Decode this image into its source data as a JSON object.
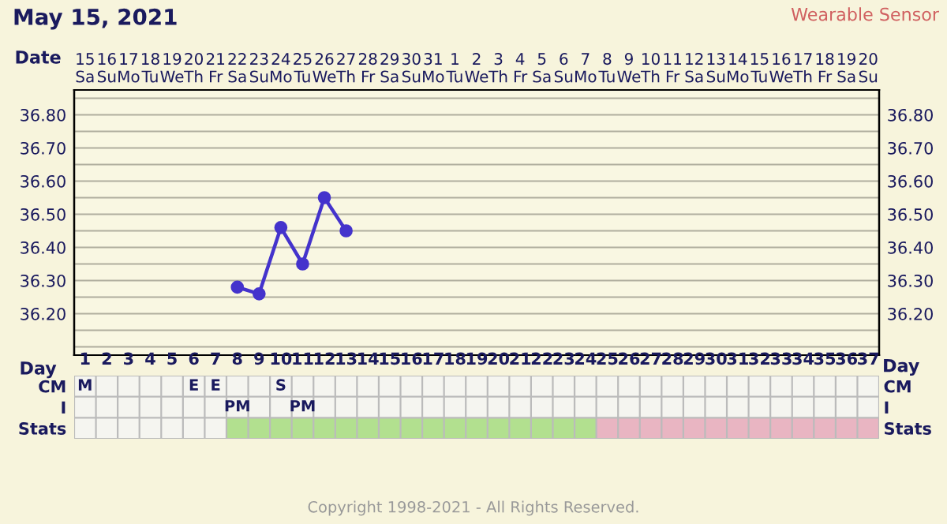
{
  "chart_data": [
    {
      "type": "line",
      "title": "May 15, 2021",
      "subtitle": "Wearable Sensor",
      "x2label": "Date",
      "tick_labels": "y",
      "categories": [
        "1",
        "2",
        "3",
        "4",
        "5",
        "6",
        "7",
        "8",
        "9",
        "10",
        "11",
        "12",
        "13",
        "14",
        "15",
        "16",
        "17",
        "18",
        "19",
        "20",
        "21",
        "22",
        "23",
        "24",
        "25",
        "26",
        "27",
        "28",
        "29",
        "30",
        "31",
        "32",
        "33",
        "34",
        "35",
        "36",
        "37"
      ],
      "series": [
        {
          "color": "#4433cc",
          "values": [
            null,
            null,
            null,
            null,
            null,
            null,
            null,
            36.28,
            36.26,
            36.46,
            36.35,
            36.55,
            36.45,
            null,
            null,
            null,
            null,
            null,
            null,
            null,
            null,
            null,
            null,
            null,
            null,
            null,
            null,
            null,
            null,
            null,
            null,
            null,
            null,
            null,
            null,
            null,
            null
          ]
        }
      ],
      "ylim": [
        36.075,
        36.875
      ],
      "yticks": [
        {
          "value": 36.1,
          "label": null
        },
        {
          "value": 36.15,
          "label": null
        },
        {
          "value": 36.2,
          "label": "36.20"
        },
        {
          "value": 36.25,
          "label": null
        },
        {
          "value": 36.3,
          "label": "36.30"
        },
        {
          "value": 36.35,
          "label": null
        },
        {
          "value": 36.4,
          "label": "36.40"
        },
        {
          "value": 36.45,
          "label": null
        },
        {
          "value": 36.5,
          "label": "36.50"
        },
        {
          "value": 36.55,
          "label": null
        },
        {
          "value": 36.6,
          "label": "36.60"
        },
        {
          "value": 36.65,
          "label": null
        },
        {
          "value": 36.7,
          "label": "36.70"
        },
        {
          "value": 36.75,
          "label": null
        },
        {
          "value": 36.8,
          "label": "36.80"
        },
        {
          "value": 36.85,
          "label": null
        }
      ],
      "y2lim": [
        36.075,
        36.875
      ],
      "y2ticks": [
        {
          "value": 36.1,
          "label": null
        },
        {
          "value": 36.15,
          "label": null
        },
        {
          "value": 36.2,
          "label": "36.20"
        },
        {
          "value": 36.25,
          "label": null
        },
        {
          "value": 36.3,
          "label": "36.30"
        },
        {
          "value": 36.35,
          "label": null
        },
        {
          "value": 36.4,
          "label": "36.40"
        },
        {
          "value": 36.45,
          "label": null
        },
        {
          "value": 36.5,
          "label": "36.50"
        },
        {
          "value": 36.55,
          "label": null
        },
        {
          "value": 36.6,
          "label": "36.60"
        },
        {
          "value": 36.65,
          "label": null
        },
        {
          "value": 36.7,
          "label": "36.70"
        },
        {
          "value": 36.75,
          "label": null
        },
        {
          "value": 36.8,
          "label": "36.80"
        },
        {
          "value": 36.85,
          "label": null
        }
      ],
      "x2lim": [
        "2021-05-14T12:00",
        "2021-06-20T12:00"
      ],
      "x2ticks": [
        {
          "value": "2021-05-15",
          "label": "15\nSa"
        },
        {
          "value": "2021-05-16",
          "label": "16\nSu"
        },
        {
          "value": "2021-05-17",
          "label": "17\nMo"
        },
        {
          "value": "2021-05-18",
          "label": "18\nTu"
        },
        {
          "value": "2021-05-19",
          "label": "19\nWe"
        },
        {
          "value": "2021-05-20",
          "label": "20\nTh"
        },
        {
          "value": "2021-05-21",
          "label": "21\nFr"
        },
        {
          "value": "2021-05-22",
          "label": "22\nSa"
        },
        {
          "value": "2021-05-23",
          "label": "23\nSu"
        },
        {
          "value": "2021-05-24",
          "label": "24\nMo"
        },
        {
          "value": "2021-05-25",
          "label": "25\nTu"
        },
        {
          "value": "2021-05-26",
          "label": "26\nWe"
        },
        {
          "value": "2021-05-27",
          "label": "27\nTh"
        },
        {
          "value": "2021-05-28",
          "label": "28\nFr"
        },
        {
          "value": "2021-05-29",
          "label": "29\nSa"
        },
        {
          "value": "2021-05-30",
          "label": "30\nSu"
        },
        {
          "value": "2021-05-31",
          "label": "31\nMo"
        },
        {
          "value": "2021-06-01",
          "label": "1\nTu"
        },
        {
          "value": "2021-06-02",
          "label": "2\nWe"
        },
        {
          "value": "2021-06-03",
          "label": "3\nTh"
        },
        {
          "value": "2021-06-04",
          "label": "4\nFr"
        },
        {
          "value": "2021-06-05",
          "label": "5\nSa"
        },
        {
          "value": "2021-06-06",
          "label": "6\nSu"
        },
        {
          "value": "2021-06-07",
          "label": "7\nMo"
        },
        {
          "value": "2021-06-08",
          "label": "8\nTu"
        },
        {
          "value": "2021-06-09",
          "label": "9\nWe"
        },
        {
          "value": "2021-06-10",
          "label": "10\nTh"
        },
        {
          "value": "2021-06-11",
          "label": "11\nFr"
        },
        {
          "value": "2021-06-12",
          "label": "12\nSa"
        },
        {
          "value": "2021-06-13",
          "label": "13\nSu"
        },
        {
          "value": "2021-06-14",
          "label": "14\nMo"
        },
        {
          "value": "2021-06-15",
          "label": "15\nTu"
        },
        {
          "value": "2021-06-16",
          "label": "16\nWe"
        },
        {
          "value": "2021-06-17",
          "label": "17\nTh"
        },
        {
          "value": "2021-06-18",
          "label": "18\nFr"
        },
        {
          "value": "2021-06-19",
          "label": "19\nSa"
        },
        {
          "value": "2021-06-20",
          "label": "20\nSu"
        }
      ],
      "grid": true,
      "marker": "circle",
      "line_style": "solid",
      "legend": false,
      "annotations": [
        "Copyright 1998-2021 - All Rights Reserved."
      ]
    },
    {
      "type": "heatmap",
      "xlabel": "Day",
      "annotations": [
        "Day"
      ],
      "bands": [
        {
          "axis": "x",
          "from": "8",
          "to": "24",
          "color": "#b2e08f"
        },
        {
          "axis": "x",
          "from": "25",
          "to": "37",
          "color": "#e9b5c2"
        }
      ],
      "categories": [
        "1",
        "2",
        "3",
        "4",
        "5",
        "6",
        "7",
        "8",
        "9",
        "10",
        "11",
        "12",
        "13",
        "14",
        "15",
        "16",
        "17",
        "18",
        "19",
        "20",
        "21",
        "22",
        "23",
        "24",
        "25",
        "26",
        "27",
        "28",
        "29",
        "30",
        "31",
        "32",
        "33",
        "34",
        "35",
        "36",
        "37"
      ],
      "y_categories": [
        "CM",
        "I",
        "Stats"
      ],
      "y2_categories": [
        "CM",
        "I",
        "Stats"
      ],
      "cells": [
        [
          null,
          null,
          null,
          null,
          null,
          null,
          null,
          null,
          null,
          null,
          null,
          null,
          null,
          null,
          null,
          null,
          null,
          null,
          null,
          null,
          null,
          null,
          null,
          null,
          null,
          null,
          null,
          null,
          null,
          null,
          null,
          null,
          null,
          null,
          null,
          null,
          null
        ],
        [
          null,
          null,
          null,
          null,
          null,
          null,
          null,
          null,
          null,
          null,
          null,
          null,
          null,
          null,
          null,
          null,
          null,
          null,
          null,
          null,
          null,
          null,
          null,
          null,
          null,
          null,
          null,
          null,
          null,
          null,
          null,
          null,
          null,
          null,
          null,
          null,
          null
        ],
        [
          null,
          null,
          null,
          null,
          null,
          null,
          null,
          null,
          null,
          null,
          null,
          null,
          null,
          null,
          null,
          null,
          null,
          null,
          null,
          null,
          null,
          null,
          null,
          null,
          null,
          null,
          null,
          null,
          null,
          null,
          null,
          null,
          null,
          null,
          null,
          null,
          null
        ]
      ],
      "cell_labels": [
        [
          "M",
          null,
          null,
          null,
          null,
          "E",
          "E",
          null,
          null,
          "S",
          null,
          null,
          null,
          null,
          null,
          null,
          null,
          null,
          null,
          null,
          null,
          null,
          null,
          null,
          null,
          null,
          null,
          null,
          null,
          null,
          null,
          null,
          null,
          null,
          null,
          null,
          null
        ],
        [
          null,
          null,
          null,
          null,
          null,
          null,
          null,
          "PM",
          null,
          null,
          "PM",
          null,
          null,
          null,
          null,
          null,
          null,
          null,
          null,
          null,
          null,
          null,
          null,
          null,
          null,
          null,
          null,
          null,
          null,
          null,
          null,
          null,
          null,
          null,
          null,
          null,
          null
        ],
        [
          null,
          null,
          null,
          null,
          null,
          null,
          null,
          null,
          null,
          null,
          null,
          null,
          null,
          null,
          null,
          null,
          null,
          null,
          null,
          null,
          null,
          null,
          null,
          null,
          null,
          null,
          null,
          null,
          null,
          null,
          null,
          null,
          null,
          null,
          null,
          null,
          null
        ]
      ]
    }
  ]
}
